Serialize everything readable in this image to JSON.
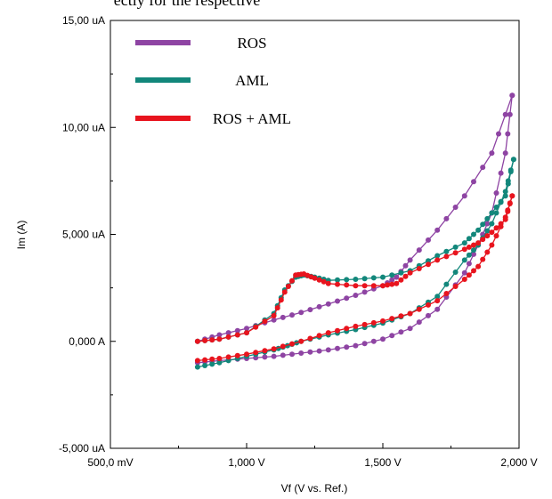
{
  "header_text": "ectly for the respective",
  "chart_data": {
    "type": "line",
    "xlabel": "Vf (V vs. Ref.)",
    "ylabel": "Im (A)",
    "xlim": [
      500,
      2000
    ],
    "ylim": [
      -5,
      15
    ],
    "x_ticks": [
      {
        "value": 500,
        "label": "500,0 mV"
      },
      {
        "value": 1000,
        "label": "1,000 V"
      },
      {
        "value": 1500,
        "label": "1,500 V"
      },
      {
        "value": 2000,
        "label": "2,000 V"
      }
    ],
    "y_ticks": [
      {
        "value": 15,
        "label": "15,00 uA"
      },
      {
        "value": 10,
        "label": "10,00 uA"
      },
      {
        "value": 5,
        "label": "5,000 uA"
      },
      {
        "value": 0,
        "label": "0,000 A"
      },
      {
        "value": -5,
        "label": "-5,000 uA"
      }
    ],
    "legend_position": "top-left",
    "series": [
      {
        "name": "ROS",
        "color": "#8e44a3",
        "forward": [
          [
            820,
            0.0
          ],
          [
            900,
            0.3
          ],
          [
            1000,
            0.6
          ],
          [
            1100,
            1.0
          ],
          [
            1200,
            1.35
          ],
          [
            1300,
            1.75
          ],
          [
            1400,
            2.15
          ],
          [
            1500,
            2.6
          ],
          [
            1550,
            3.0
          ],
          [
            1600,
            3.8
          ],
          [
            1700,
            5.2
          ],
          [
            1800,
            6.8
          ],
          [
            1900,
            8.8
          ],
          [
            1975,
            11.5
          ]
        ],
        "reverse": [
          [
            1975,
            11.5
          ],
          [
            1950,
            8.8
          ],
          [
            1900,
            6.0
          ],
          [
            1850,
            4.5
          ],
          [
            1800,
            3.2
          ],
          [
            1700,
            1.5
          ],
          [
            1600,
            0.6
          ],
          [
            1500,
            0.1
          ],
          [
            1400,
            -0.2
          ],
          [
            1300,
            -0.4
          ],
          [
            1200,
            -0.55
          ],
          [
            1100,
            -0.7
          ],
          [
            1000,
            -0.8
          ],
          [
            900,
            -0.9
          ],
          [
            820,
            -1.0
          ]
        ]
      },
      {
        "name": "AML",
        "color": "#12877b",
        "forward": [
          [
            820,
            -1.2
          ],
          [
            900,
            -1.0
          ],
          [
            1000,
            -0.7
          ],
          [
            1100,
            -0.4
          ],
          [
            1150,
            -0.2
          ],
          [
            1200,
            0.0
          ],
          [
            1300,
            0.3
          ],
          [
            1400,
            0.55
          ],
          [
            1500,
            0.85
          ],
          [
            1600,
            1.3
          ],
          [
            1700,
            2.1
          ],
          [
            1800,
            3.8
          ],
          [
            1850,
            4.5
          ],
          [
            1900,
            5.5
          ],
          [
            1950,
            7.0
          ],
          [
            1980,
            8.5
          ]
        ],
        "reverse": [
          [
            1980,
            8.5
          ],
          [
            1950,
            6.8
          ],
          [
            1900,
            6.0
          ],
          [
            1850,
            5.2
          ],
          [
            1800,
            4.6
          ],
          [
            1700,
            4.0
          ],
          [
            1600,
            3.3
          ],
          [
            1500,
            3.0
          ],
          [
            1400,
            2.9
          ],
          [
            1300,
            2.85
          ],
          [
            1250,
            3.0
          ],
          [
            1210,
            3.1
          ],
          [
            1180,
            3.0
          ],
          [
            1140,
            2.4
          ],
          [
            1100,
            1.3
          ],
          [
            1000,
            0.4
          ],
          [
            900,
            0.1
          ],
          [
            820,
            0.0
          ]
        ]
      },
      {
        "name": "ROS + AML",
        "color": "#e8141e",
        "forward": [
          [
            820,
            -0.9
          ],
          [
            900,
            -0.8
          ],
          [
            1000,
            -0.6
          ],
          [
            1100,
            -0.35
          ],
          [
            1200,
            0.0
          ],
          [
            1300,
            0.4
          ],
          [
            1400,
            0.7
          ],
          [
            1500,
            0.95
          ],
          [
            1600,
            1.3
          ],
          [
            1700,
            1.9
          ],
          [
            1800,
            2.9
          ],
          [
            1850,
            3.5
          ],
          [
            1900,
            4.5
          ],
          [
            1950,
            5.8
          ],
          [
            1975,
            6.8
          ]
        ],
        "reverse": [
          [
            1975,
            6.8
          ],
          [
            1950,
            5.7
          ],
          [
            1900,
            5.1
          ],
          [
            1850,
            4.6
          ],
          [
            1800,
            4.3
          ],
          [
            1700,
            3.8
          ],
          [
            1600,
            3.2
          ],
          [
            1550,
            2.7
          ],
          [
            1500,
            2.6
          ],
          [
            1400,
            2.6
          ],
          [
            1300,
            2.7
          ],
          [
            1250,
            2.95
          ],
          [
            1210,
            3.15
          ],
          [
            1180,
            3.1
          ],
          [
            1140,
            2.3
          ],
          [
            1100,
            1.2
          ],
          [
            1000,
            0.4
          ],
          [
            900,
            0.1
          ],
          [
            820,
            0.0
          ]
        ]
      }
    ]
  }
}
